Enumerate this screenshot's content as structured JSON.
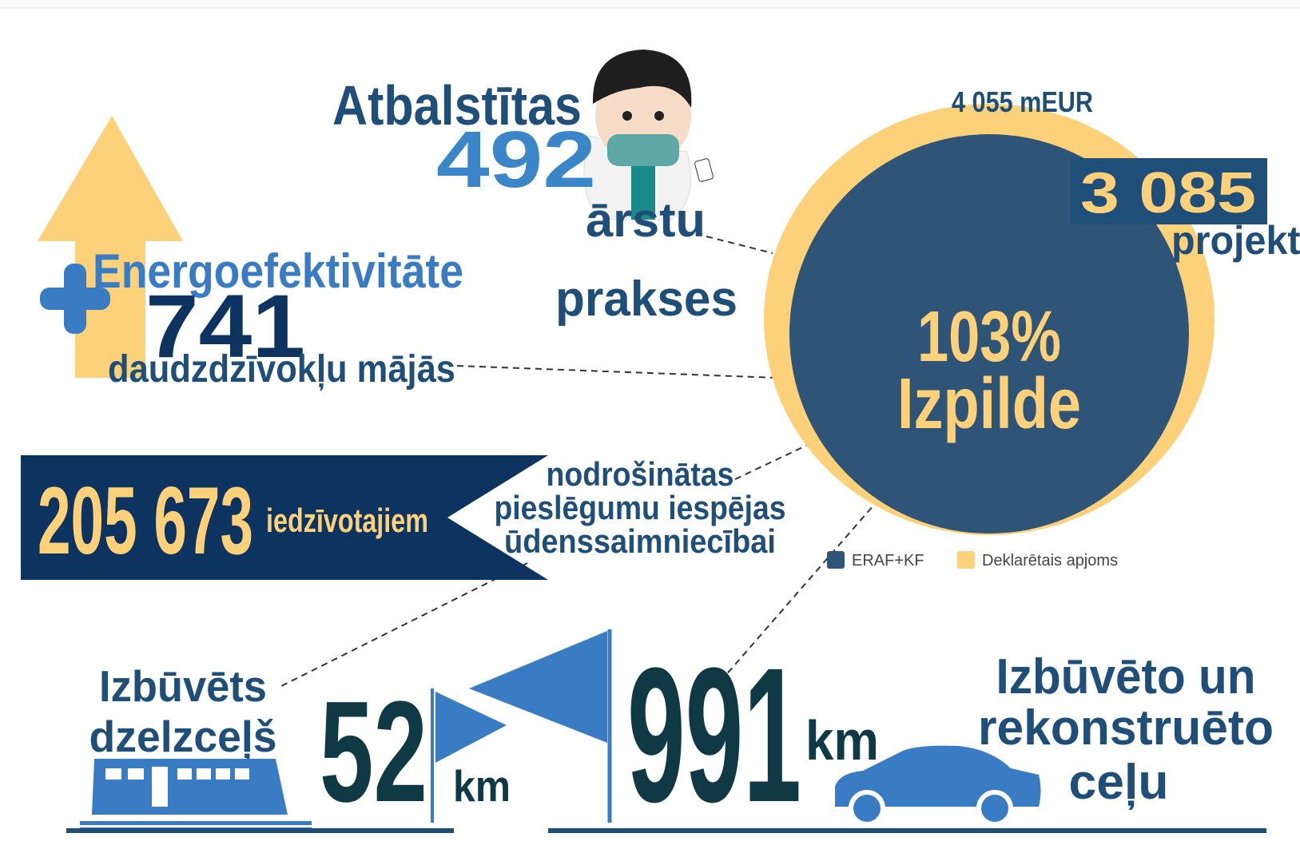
{
  "doctors": {
    "title": "Atbalstītas",
    "number": "492",
    "line1": "ārstu",
    "line2": "prakses"
  },
  "energy": {
    "title": "Energoefektivitāte",
    "number": "741",
    "subtitle": "daudzdzīvokļu mājās"
  },
  "execution": {
    "budget": "4 055 mEUR",
    "projects_number": "3 085",
    "projects_label": "projekti",
    "percent": "103%",
    "label": "Izpilde",
    "legend": [
      "ERAF+KF",
      "Deklarētais apjoms"
    ]
  },
  "water": {
    "number": "205 673",
    "unit": "iedzīvotajiem",
    "lines": [
      "nodrošinātas",
      "pieslēgumu iespējas",
      "ūdenssaimniecībai"
    ]
  },
  "railway": {
    "lines": [
      "Izbūvēts",
      "dzelzceļš"
    ],
    "number": "52",
    "unit": "km"
  },
  "roads": {
    "number": "991",
    "unit": "km",
    "lines": [
      "Izbūvēto un",
      "rekonstruēto",
      "ceļu"
    ]
  }
}
